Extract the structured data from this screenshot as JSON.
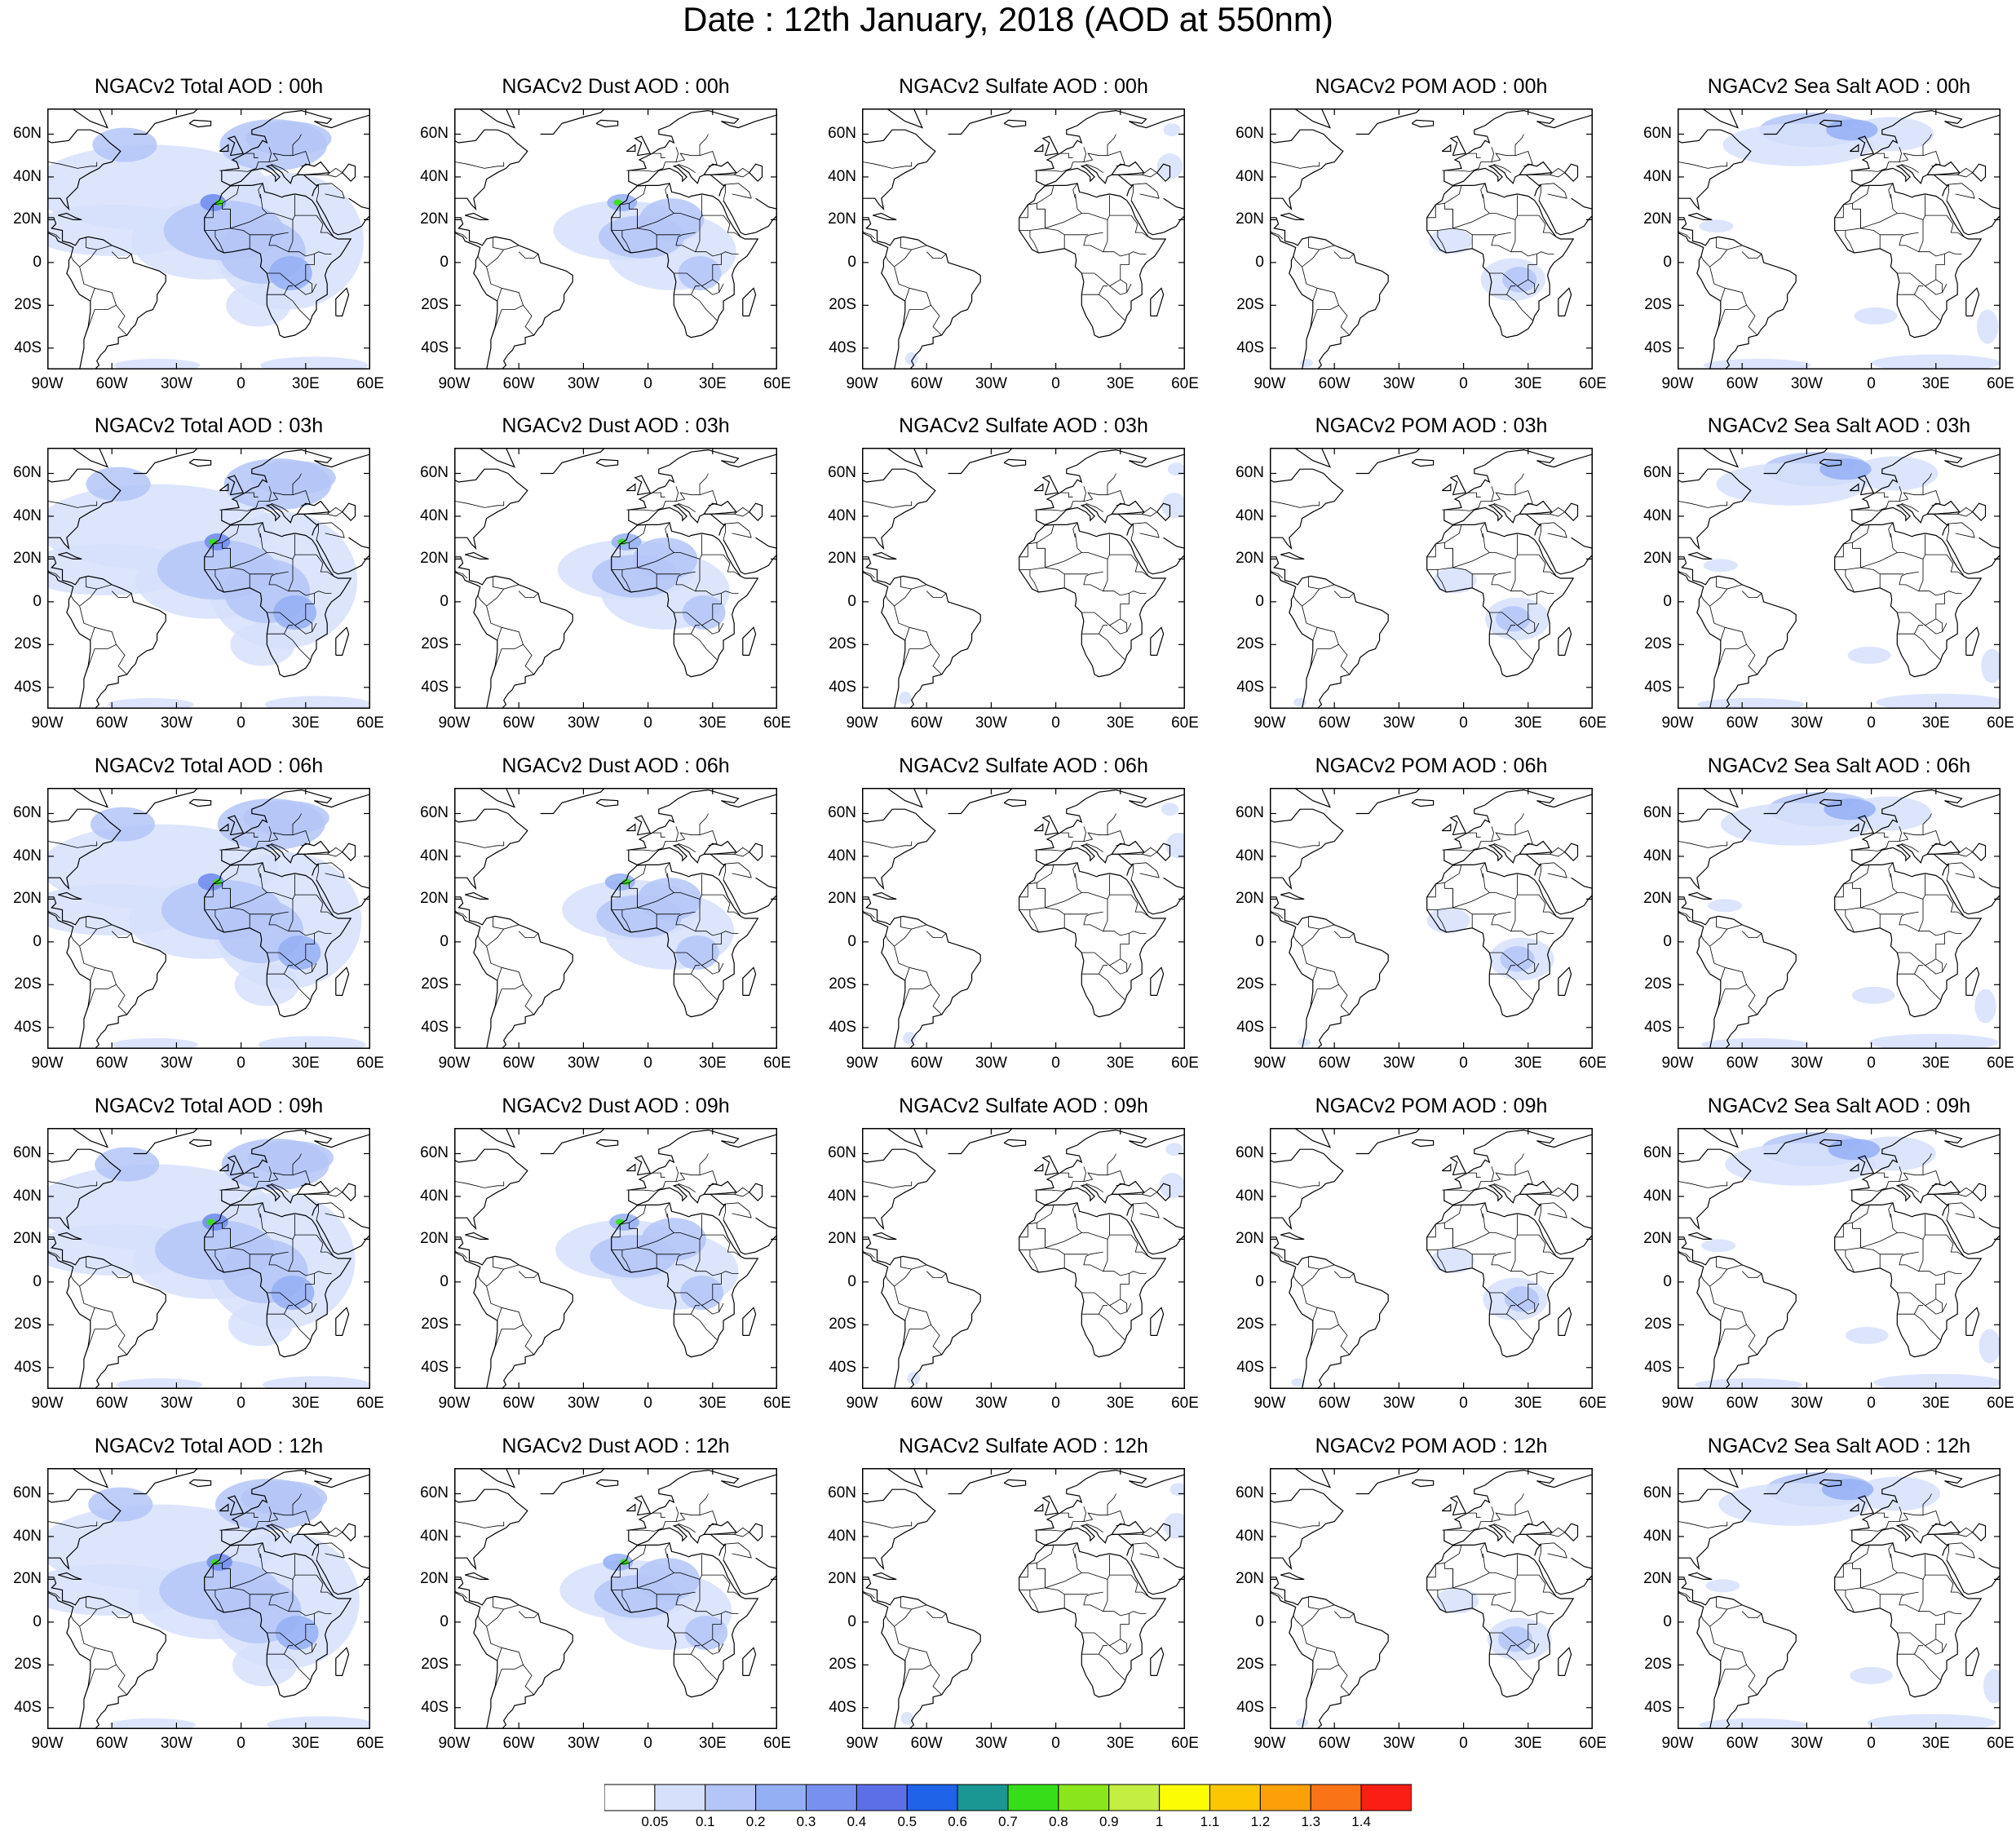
{
  "title": "Date : 12th January, 2018 (AOD at 550nm)",
  "lat_labels": [
    "60N",
    "40N",
    "20N",
    "0",
    "20S",
    "40S"
  ],
  "lat_values": [
    60,
    40,
    20,
    0,
    -20,
    -40
  ],
  "lon_labels": [
    "90W",
    "60W",
    "30W",
    "0",
    "30E",
    "60E"
  ],
  "lon_values": [
    -90,
    -60,
    -30,
    0,
    30,
    60
  ],
  "lat_range": [
    -50,
    72
  ],
  "lon_range": [
    -90,
    60
  ],
  "panels": [
    [
      "NGACv2 Total AOD : 00h",
      "NGACv2 Dust AOD : 00h",
      "NGACv2 Sulfate AOD : 00h",
      "NGACv2 POM AOD : 00h",
      "NGACv2 Sea Salt AOD : 00h"
    ],
    [
      "NGACv2 Total AOD : 03h",
      "NGACv2 Dust AOD : 03h",
      "NGACv2 Sulfate AOD : 03h",
      "NGACv2 POM AOD : 03h",
      "NGACv2 Sea Salt AOD : 03h"
    ],
    [
      "NGACv2 Total AOD : 06h",
      "NGACv2 Dust AOD : 06h",
      "NGACv2 Sulfate AOD : 06h",
      "NGACv2 POM AOD : 06h",
      "NGACv2 Sea Salt AOD : 06h"
    ],
    [
      "NGACv2 Total AOD : 09h",
      "NGACv2 Dust AOD : 09h",
      "NGACv2 Sulfate AOD : 09h",
      "NGACv2 POM AOD : 09h",
      "NGACv2 Sea Salt  AOD : 09h"
    ],
    [
      "NGACv2 Total AOD  : 12h",
      "NGACv2 Dust AOD : 12h",
      "NGACv2 Sulfate AOD : 12h",
      "NGACv2 POM  AOD : 12h",
      "NGACv2 Sea Salt  AOD : 12h"
    ]
  ],
  "colorbar": {
    "labels": [
      "0.05",
      "0.1",
      "0.2",
      "0.3",
      "0.4",
      "0.5",
      "0.6",
      "0.7",
      "0.8",
      "0.9",
      "1",
      "1.1",
      "1.2",
      "1.3",
      "1.4"
    ],
    "colors": [
      "#ffffff",
      "#d6e0fb",
      "#b4c6f7",
      "#94aff4",
      "#7891f0",
      "#5d6fe6",
      "#1f63e8",
      "#1a9693",
      "#36de1a",
      "#8ae61b",
      "#c4ee41",
      "#fcfc05",
      "#fcc702",
      "#fca00a",
      "#fb7317",
      "#fb1e14"
    ]
  }
}
